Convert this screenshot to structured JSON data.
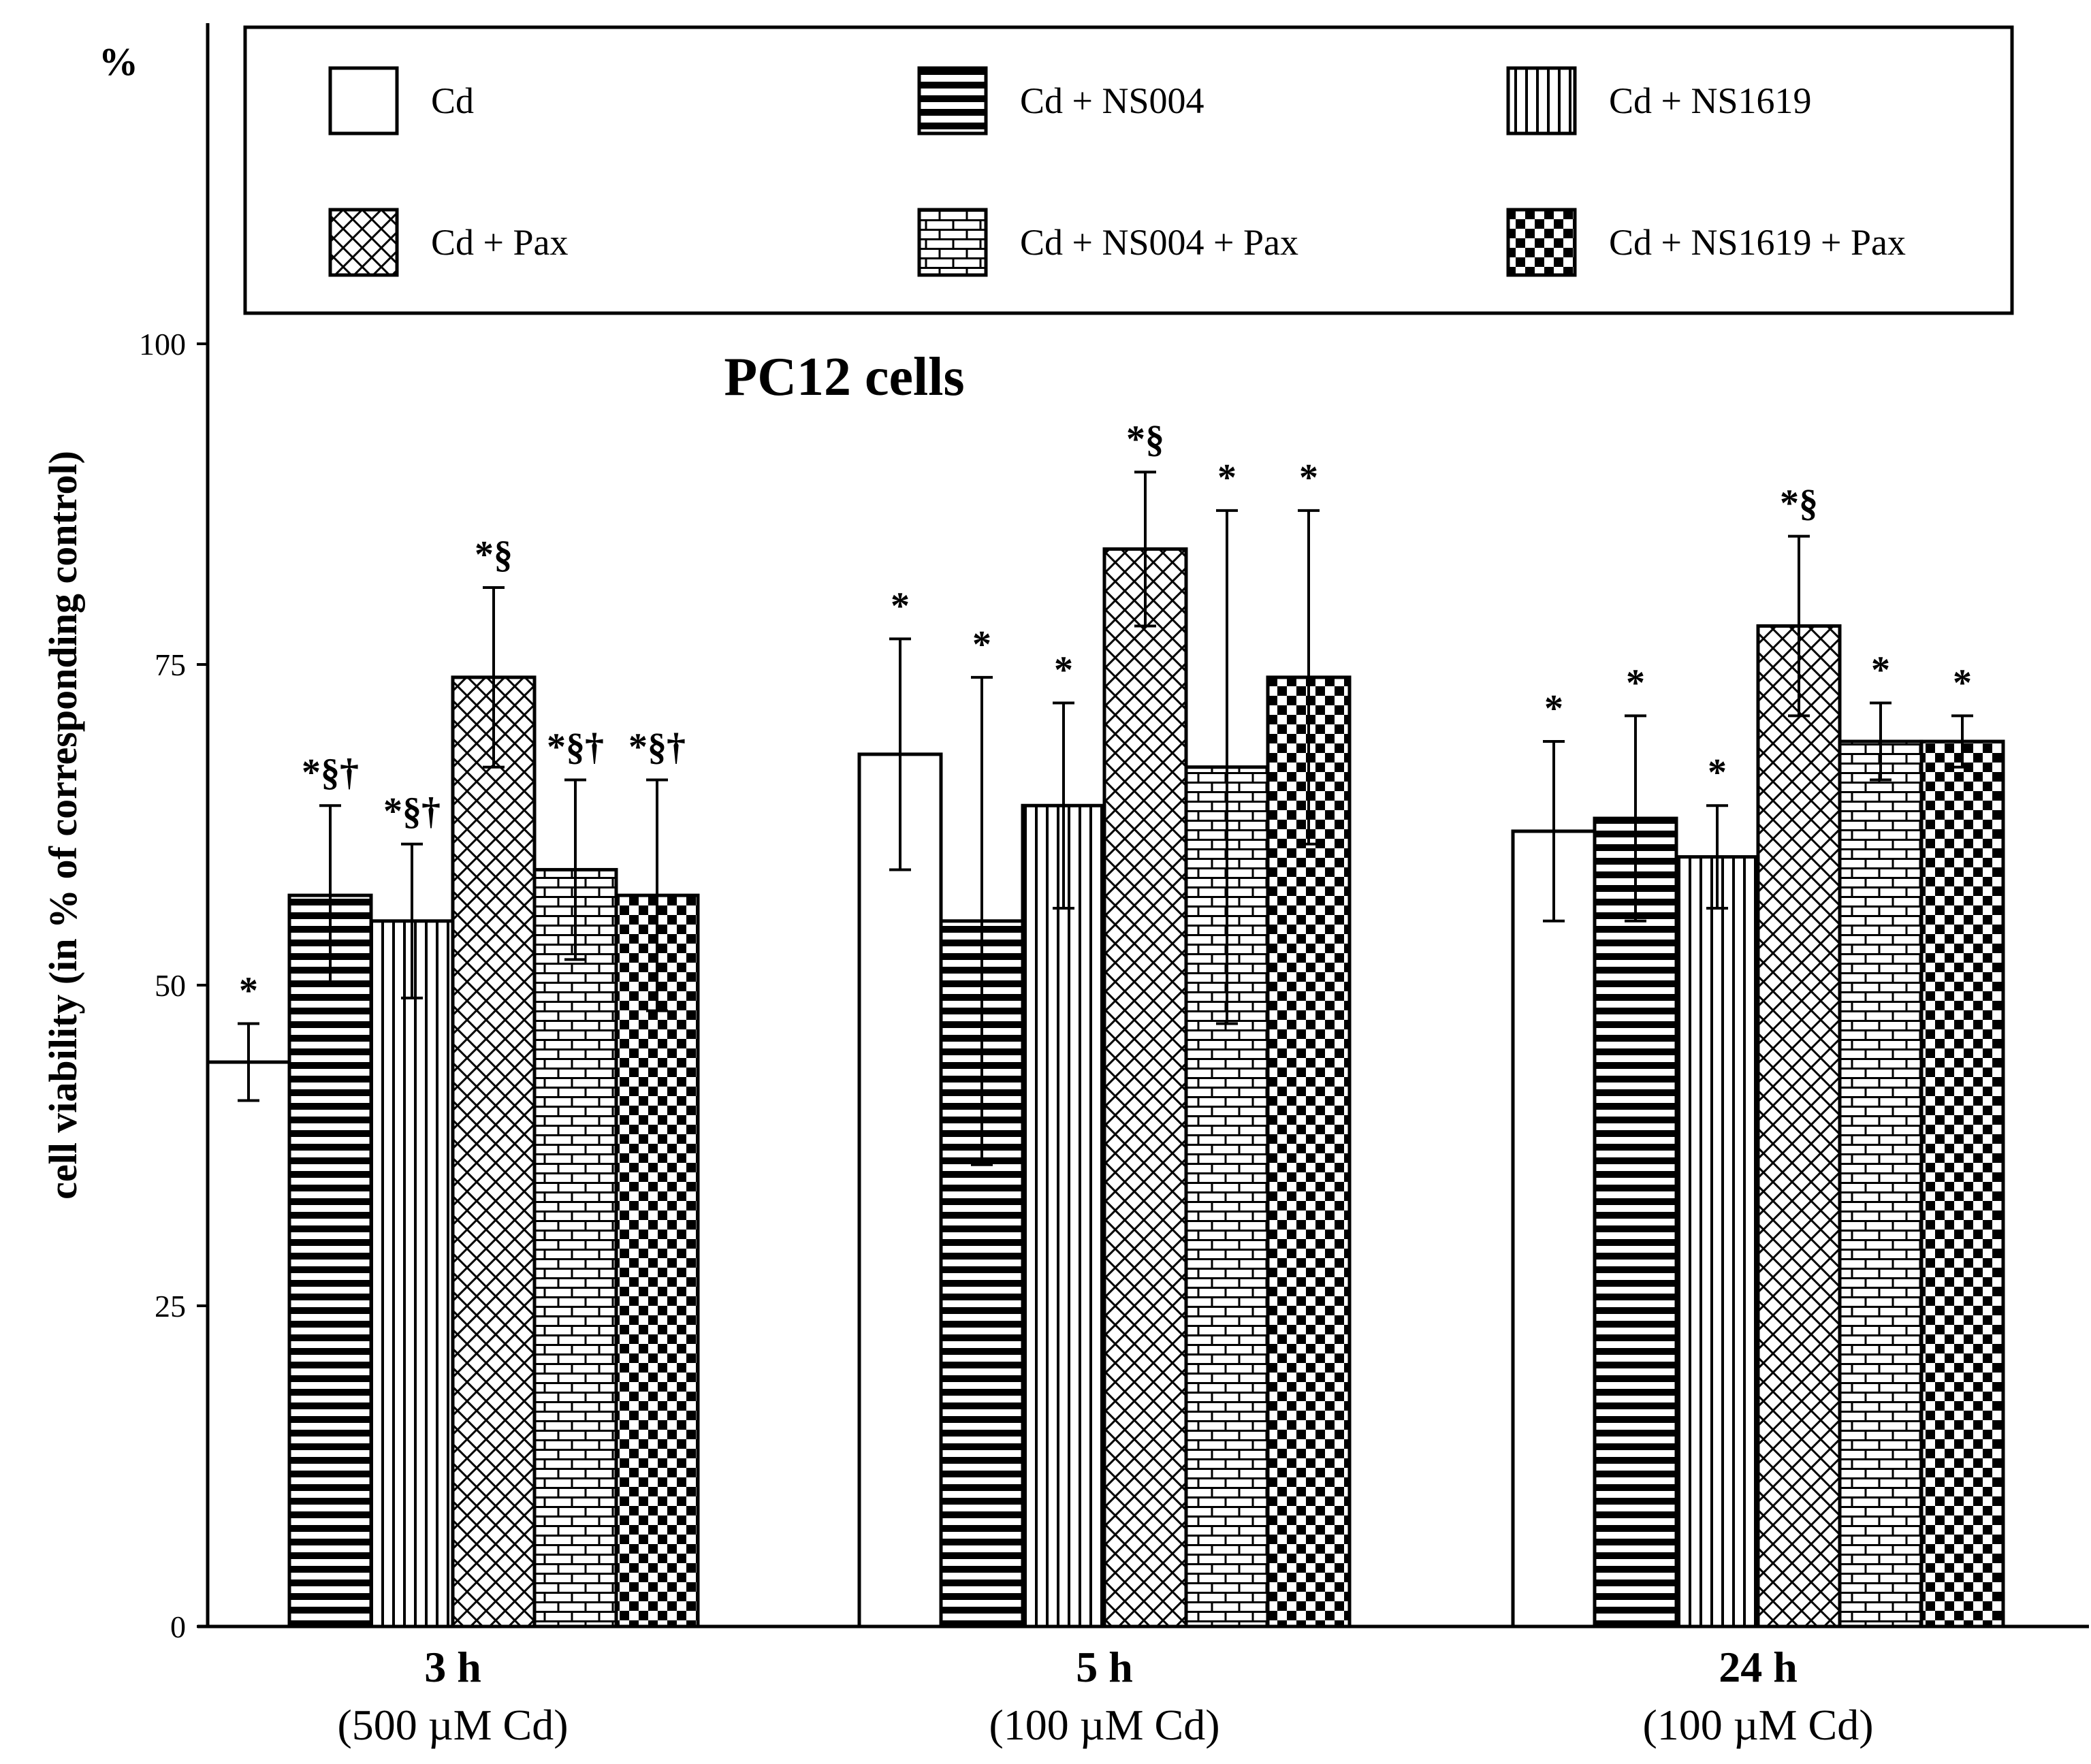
{
  "chart_data": {
    "type": "bar",
    "title": "PC12 cells",
    "ylabel": "cell viability (in % of corresponding control)",
    "yunit": "%",
    "ylim": [
      0,
      125
    ],
    "yticks": [
      0,
      25,
      50,
      75,
      100
    ],
    "grid": false,
    "legend_position": "top",
    "categories": [
      {
        "main": "3 h",
        "sub": "(500 µM Cd)"
      },
      {
        "main": "5 h",
        "sub": "(100 µM Cd)"
      },
      {
        "main": "24 h",
        "sub": "(100 µM Cd)"
      }
    ],
    "series": [
      {
        "name": "Cd",
        "pattern": "blank",
        "values": [
          44,
          68,
          62
        ],
        "errors": [
          3,
          9,
          7
        ],
        "significance": [
          "*",
          "*",
          "*"
        ]
      },
      {
        "name": "Cd + NS004",
        "pattern": "horizontal-lines",
        "values": [
          57,
          55,
          63
        ],
        "errors": [
          7,
          19,
          8
        ],
        "significance": [
          "*§†",
          "*",
          "*"
        ]
      },
      {
        "name": "Cd + NS1619",
        "pattern": "vertical-lines",
        "values": [
          55,
          64,
          60
        ],
        "errors": [
          6,
          8,
          4
        ],
        "significance": [
          "*§†",
          "*",
          "*"
        ]
      },
      {
        "name": "Cd + Pax",
        "pattern": "crosshatch",
        "values": [
          74,
          84,
          78
        ],
        "errors": [
          7,
          6,
          7
        ],
        "significance": [
          "*§",
          "*§",
          "*§"
        ]
      },
      {
        "name": "Cd + NS004 + Pax",
        "pattern": "brick",
        "values": [
          59,
          67,
          69
        ],
        "errors": [
          7,
          20,
          3
        ],
        "significance": [
          "*§†",
          "*",
          "*"
        ]
      },
      {
        "name": "Cd + NS1619 + Pax",
        "pattern": "checkerboard",
        "values": [
          57,
          74,
          69
        ],
        "errors": [
          9,
          13,
          2
        ],
        "significance": [
          "*§†",
          "*",
          "*"
        ]
      }
    ]
  }
}
